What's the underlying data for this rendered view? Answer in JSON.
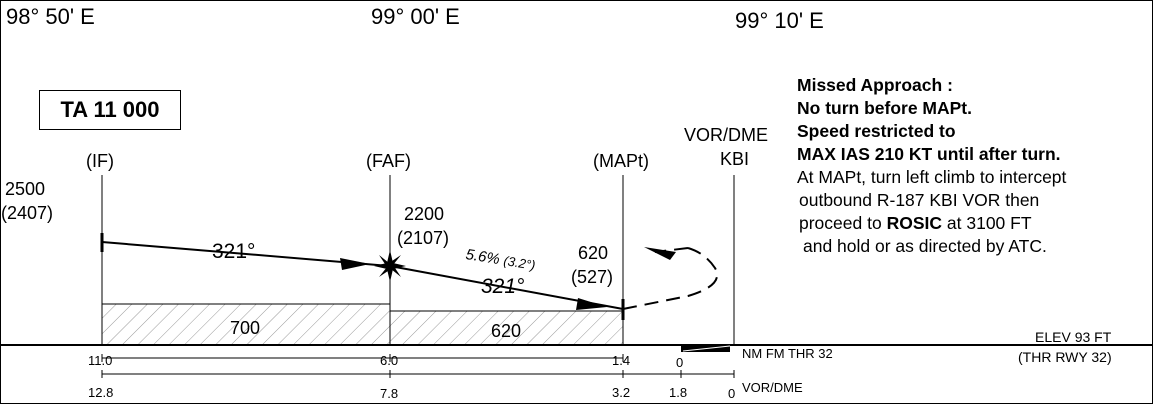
{
  "header": {
    "coords": [
      "98° 50' E",
      "99° 00' E",
      "99° 10' E"
    ]
  },
  "transition_altitude": "TA 11 000",
  "fixes": {
    "if_label": "(IF)",
    "faf_label": "(FAF)",
    "mapt_label": "(MAPt)",
    "vor_label_line1": "VOR/DME",
    "vor_label_line2": "KBI"
  },
  "altitudes": {
    "if_alt": "2500",
    "if_alt_qfe": "(2407)",
    "faf_alt": "2200",
    "faf_alt_qfe": "(2107)",
    "mapt_alt": "620",
    "mapt_alt_qfe": "(527)"
  },
  "tracks": {
    "initial": "321°",
    "final": "321°",
    "gradient": "5.6%",
    "angle": "(3.2°)"
  },
  "minimums": {
    "segment1": "700",
    "segment2": "620"
  },
  "missed_approach": {
    "title": "Missed Approach :",
    "line1": "No turn before MAPt.",
    "line2": "Speed restricted to",
    "line3": "MAX IAS 210 KT until after turn.",
    "line4": "At MAPt, turn left climb to intercept",
    "line5": "outbound R-187 KBI VOR then",
    "line6_pre": "proceed to",
    "line6_bold": "ROSIC",
    "line6_post": "at 3100 FT",
    "line7": "and hold or as directed by ATC."
  },
  "elevation": {
    "elev": "ELEV 93 FT",
    "thr": "(THR RWY 32)"
  },
  "scale_thr": {
    "label": "NM FM THR 32",
    "ticks": [
      "11.0",
      "6.0",
      "1.4",
      "0"
    ]
  },
  "scale_vor": {
    "label": "VOR/DME",
    "ticks": [
      "12.8",
      "7.8",
      "3.2",
      "1.8",
      "0"
    ]
  }
}
